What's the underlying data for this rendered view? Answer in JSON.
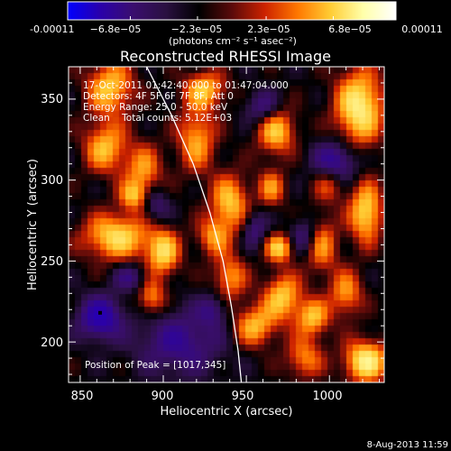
{
  "chart_data": {
    "type": "heatmap",
    "title": "Reconstructed RHESSI Image",
    "xlabel": "Heliocentric X (arcsec)",
    "ylabel": "Heliocentric Y (arcsec)",
    "xlim": [
      843,
      1033
    ],
    "ylim": [
      175,
      370
    ],
    "xticks": [
      850,
      900,
      950,
      1000
    ],
    "yticks": [
      200,
      250,
      300,
      350
    ],
    "x_tick_labels": [
      "850",
      "900",
      "950",
      "1000"
    ],
    "y_tick_labels": [
      "200",
      "250",
      "300",
      "350"
    ],
    "colorbar": {
      "range": [
        -0.00011,
        0.00011
      ],
      "tick_labels": [
        "-0.00011",
        "−6.8e−05",
        "−2.3e−05",
        "2.3e−05",
        "6.8e−05",
        "0.00011"
      ],
      "units_label": "(photons cm⁻² s⁻¹ asec⁻²)",
      "colors": [
        "#0000ff",
        "#2a00aa",
        "#3a0e6e",
        "#2a1040",
        "#000000",
        "#5a0a0a",
        "#cc2200",
        "#ff7700",
        "#ffcc33",
        "#ffffaa",
        "#ffffff"
      ]
    },
    "annotations": {
      "time_range": "17-Oct-2011 01:42:40.000 to 01:47:04.000",
      "detectors": "Detectors: 4F 5F 6F 7F 8F, Att 0",
      "energy_range": "Energy Range: 25.0 - 50.0 keV",
      "algorithm_counts": "Clean    Total counts: 5.12E+03",
      "peak_position": "Position of Peak = [1017,345]"
    },
    "peak": {
      "x": 1017,
      "y": 345
    },
    "intensity_blobs": [
      {
        "x": 868,
        "y": 357,
        "sx": 10,
        "sy": 12,
        "a": 0.75
      },
      {
        "x": 865,
        "y": 320,
        "sx": 9,
        "sy": 11,
        "a": 0.7
      },
      {
        "x": 888,
        "y": 305,
        "sx": 8,
        "sy": 12,
        "a": 0.6
      },
      {
        "x": 872,
        "y": 265,
        "sx": 14,
        "sy": 10,
        "a": 0.85
      },
      {
        "x": 900,
        "y": 255,
        "sx": 7,
        "sy": 10,
        "a": 0.8
      },
      {
        "x": 893,
        "y": 227,
        "sx": 6,
        "sy": 8,
        "a": 0.6
      },
      {
        "x": 882,
        "y": 290,
        "sx": 6,
        "sy": 6,
        "a": 0.55
      },
      {
        "x": 925,
        "y": 356,
        "sx": 9,
        "sy": 8,
        "a": 0.7
      },
      {
        "x": 920,
        "y": 325,
        "sx": 8,
        "sy": 14,
        "a": 0.65
      },
      {
        "x": 940,
        "y": 286,
        "sx": 8,
        "sy": 12,
        "a": 0.75
      },
      {
        "x": 930,
        "y": 265,
        "sx": 7,
        "sy": 8,
        "a": 0.55
      },
      {
        "x": 940,
        "y": 240,
        "sx": 7,
        "sy": 10,
        "a": 0.6
      },
      {
        "x": 955,
        "y": 210,
        "sx": 9,
        "sy": 9,
        "a": 0.7
      },
      {
        "x": 968,
        "y": 330,
        "sx": 8,
        "sy": 10,
        "a": 0.75
      },
      {
        "x": 965,
        "y": 295,
        "sx": 6,
        "sy": 8,
        "a": 0.55
      },
      {
        "x": 970,
        "y": 258,
        "sx": 6,
        "sy": 6,
        "a": 0.8
      },
      {
        "x": 972,
        "y": 228,
        "sx": 8,
        "sy": 10,
        "a": 0.75
      },
      {
        "x": 985,
        "y": 190,
        "sx": 8,
        "sy": 9,
        "a": 0.55
      },
      {
        "x": 990,
        "y": 215,
        "sx": 7,
        "sy": 8,
        "a": 0.7
      },
      {
        "x": 995,
        "y": 260,
        "sx": 7,
        "sy": 12,
        "a": 0.6
      },
      {
        "x": 1000,
        "y": 300,
        "sx": 7,
        "sy": 9,
        "a": 0.6
      },
      {
        "x": 1018,
        "y": 345,
        "sx": 10,
        "sy": 16,
        "a": 1.0
      },
      {
        "x": 1022,
        "y": 280,
        "sx": 7,
        "sy": 13,
        "a": 0.85
      },
      {
        "x": 1022,
        "y": 188,
        "sx": 9,
        "sy": 9,
        "a": 1.0
      },
      {
        "x": 1010,
        "y": 230,
        "sx": 7,
        "sy": 10,
        "a": 0.6
      },
      {
        "x": 862,
        "y": 215,
        "sx": 9,
        "sy": 9,
        "a": -0.85
      },
      {
        "x": 910,
        "y": 200,
        "sx": 18,
        "sy": 14,
        "a": -0.55
      },
      {
        "x": 895,
        "y": 285,
        "sx": 6,
        "sy": 8,
        "a": -0.45
      },
      {
        "x": 880,
        "y": 240,
        "sx": 7,
        "sy": 6,
        "a": -0.45
      },
      {
        "x": 1003,
        "y": 310,
        "sx": 9,
        "sy": 9,
        "a": -0.85
      },
      {
        "x": 960,
        "y": 345,
        "sx": 7,
        "sy": 7,
        "a": -0.5
      },
      {
        "x": 955,
        "y": 270,
        "sx": 5,
        "sy": 8,
        "a": -0.45
      },
      {
        "x": 985,
        "y": 265,
        "sx": 6,
        "sy": 8,
        "a": -0.5
      },
      {
        "x": 930,
        "y": 220,
        "sx": 6,
        "sy": 7,
        "a": -0.4
      }
    ],
    "limb_curve": [
      [
        890,
        370
      ],
      [
        905,
        340
      ],
      [
        918,
        310
      ],
      [
        928,
        280
      ],
      [
        936,
        250
      ],
      [
        941,
        222
      ],
      [
        945,
        195
      ],
      [
        947,
        175
      ]
    ],
    "peak_marker_color": "#000000",
    "limb_color": "#ffffff"
  },
  "footer": {
    "date": "8-Aug-2013 11:59"
  }
}
